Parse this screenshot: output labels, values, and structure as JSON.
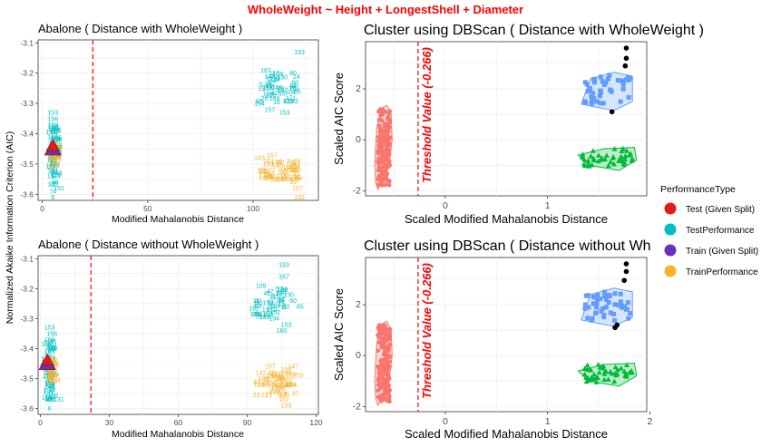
{
  "title": "WholeWeight ~ Height + LongestShell + Diameter",
  "colors": {
    "test_split": "#e41a1c",
    "test_performance": "#00bfc4",
    "train_split": "#6a2fbf",
    "train_performance": "#f8b32d",
    "cluster_red": "#f8766d",
    "cluster_green": "#00ba38",
    "cluster_blue": "#619cff",
    "noise": "#000000",
    "threshold": "#ff0000"
  },
  "legend": {
    "title": "PerformanceType",
    "items": [
      "Test (Given Split)",
      "TestPerformance",
      "Train (Given Split)",
      "TrainPerformance"
    ]
  },
  "chart_data": [
    {
      "type": "scatter",
      "title": "Abalone ( Distance with WholeWeight )",
      "xlabel": "Modified Mahalanobis Distance",
      "ylabel": "Normalized Akaike Information Criterion (AIC)",
      "xlim": [
        -2,
        131
      ],
      "ylim": [
        -3.62,
        -3.09
      ],
      "xticks": [
        0,
        50,
        100
      ],
      "yticks": [
        -3.1,
        -3.2,
        -3.3,
        -3.4,
        -3.5,
        -3.6
      ],
      "threshold_x": 24,
      "series": [
        {
          "name": "TestPerformance",
          "points": [
            [
              110,
              -3.2,
              "117"
            ],
            [
              106,
              -3.19,
              "167"
            ],
            [
              104,
              -3.25,
              "19"
            ],
            [
              103,
              -3.3,
              "164"
            ],
            [
              109,
              -3.22,
              "113"
            ],
            [
              116,
              -3.29,
              "42"
            ],
            [
              113,
              -3.25,
              "28"
            ],
            [
              119,
              -3.2,
              "80"
            ],
            [
              120,
              -3.23,
              "80"
            ],
            [
              121,
              -3.26,
              "85"
            ],
            [
              108,
              -3.32,
              "157"
            ],
            [
              115,
              -3.33,
              "153"
            ],
            [
              122,
              -3.13,
              "193"
            ],
            [
              5,
              -3.33,
              "153"
            ],
            [
              5,
              -3.35,
              "156"
            ],
            [
              5,
              -3.37,
              "169"
            ],
            [
              6,
              -3.39,
              "161"
            ],
            [
              5,
              -3.41,
              "166"
            ],
            [
              7,
              -3.42,
              "68"
            ],
            [
              5,
              -3.44,
              "58"
            ],
            [
              6,
              -3.47,
              "126"
            ],
            [
              5,
              -3.49,
              "89"
            ],
            [
              6,
              -3.52,
              "41"
            ],
            [
              5,
              -3.54,
              "6"
            ],
            [
              6,
              -3.56,
              "48"
            ],
            [
              5,
              -3.59,
              "74"
            ],
            [
              8,
              -3.58,
              "131"
            ],
            [
              5,
              -3.61,
              "6"
            ]
          ]
        },
        {
          "name": "TrainPerformance",
          "points": [
            [
              103,
              -3.48,
              "142"
            ],
            [
              107,
              -3.5,
              "180"
            ],
            [
              109,
              -3.47,
              "157"
            ],
            [
              104,
              -3.52,
              "28"
            ],
            [
              110,
              -3.54,
              "113"
            ],
            [
              115,
              -3.52,
              "147"
            ],
            [
              113,
              -3.55,
              "153"
            ],
            [
              118,
              -3.5,
              "170"
            ],
            [
              121,
              -3.49,
              "84"
            ],
            [
              120,
              -3.52,
              "10"
            ],
            [
              122,
              -3.55,
              "37"
            ],
            [
              121,
              -3.58,
              "157"
            ],
            [
              122,
              -3.61,
              "193"
            ],
            [
              7,
              -3.45,
              "12"
            ],
            [
              7,
              -3.48,
              "95"
            ]
          ]
        },
        {
          "name": "Test (Given Split)",
          "points": [
            [
              5,
              -3.44
            ]
          ]
        },
        {
          "name": "Train (Given Split)",
          "points": [
            [
              5,
              -3.45
            ]
          ]
        }
      ]
    },
    {
      "type": "scatter",
      "title": "Cluster using DBScan ( Distance with WholeWeight )",
      "xlabel": "Scaled Modified Mahalanobis Distance",
      "ylabel": "Scaled AIC Score",
      "xlim": [
        -0.78,
        1.97
      ],
      "ylim": [
        -2.2,
        3.85
      ],
      "xticks": [
        0,
        1
      ],
      "yticks": [
        2,
        0,
        -2
      ],
      "threshold_x": -0.266,
      "threshold_label": "Threshold Value (-0.266)"
    },
    {
      "type": "scatter",
      "title": "Abalone ( Distance without WholeWeight )",
      "xlabel": "Modified Mahalanobis Distance",
      "ylabel": "Normalized Akaike Information Criterion (AIC)",
      "xlim": [
        -1,
        121
      ],
      "ylim": [
        -3.62,
        -3.09
      ],
      "xticks": [
        0,
        30,
        60,
        90,
        120
      ],
      "yticks": [
        -3.1,
        -3.2,
        -3.3,
        -3.4,
        -3.5,
        -3.6
      ],
      "threshold_x": 22,
      "series": [
        {
          "name": "TestPerformance",
          "points": [
            [
              106,
              -3.12,
              "193"
            ],
            [
              106,
              -3.16,
              "167"
            ],
            [
              96,
              -3.19,
              "109"
            ],
            [
              100,
              -3.21,
              "47"
            ],
            [
              94,
              -3.24,
              "11"
            ],
            [
              98,
              -3.27,
              "19"
            ],
            [
              96,
              -3.29,
              "164"
            ],
            [
              104,
              -3.24,
              "28"
            ],
            [
              108,
              -3.22,
              "130"
            ],
            [
              110,
              -3.24,
              "60"
            ],
            [
              113,
              -3.26,
              "85"
            ],
            [
              107,
              -3.32,
              "153"
            ],
            [
              105,
              -3.34,
              "160"
            ],
            [
              4,
              -3.33,
              "153"
            ],
            [
              5,
              -3.35,
              "156"
            ],
            [
              4,
              -3.37,
              "169"
            ],
            [
              5,
              -3.39,
              "161"
            ],
            [
              4,
              -3.41,
              "166"
            ],
            [
              5,
              -3.43,
              "68"
            ],
            [
              4,
              -3.46,
              "126"
            ],
            [
              5,
              -3.48,
              "89"
            ],
            [
              4,
              -3.51,
              "41"
            ],
            [
              5,
              -3.54,
              "6"
            ],
            [
              4,
              -3.57,
              "48"
            ],
            [
              8,
              -3.57,
              "131"
            ],
            [
              4,
              -3.6,
              "6"
            ]
          ]
        },
        {
          "name": "TrainPerformance",
          "points": [
            [
              96,
              -3.48,
              "142"
            ],
            [
              100,
              -3.46,
              "157"
            ],
            [
              97,
              -3.5,
              "180"
            ],
            [
              95,
              -3.52,
              "113"
            ],
            [
              104,
              -3.5,
              "28"
            ],
            [
              107,
              -3.47,
              "150"
            ],
            [
              110,
              -3.46,
              "147"
            ],
            [
              112,
              -3.49,
              "170"
            ],
            [
              108,
              -3.52,
              "10"
            ],
            [
              111,
              -3.55,
              "37"
            ],
            [
              106,
              -3.57,
              "157"
            ],
            [
              107,
              -3.59,
              "133"
            ],
            [
              6,
              -3.45,
              "12"
            ],
            [
              6,
              -3.47,
              "95"
            ]
          ]
        },
        {
          "name": "Test (Given Split)",
          "points": [
            [
              3,
              -3.44
            ]
          ]
        },
        {
          "name": "Train (Given Split)",
          "points": [
            [
              3,
              -3.45
            ]
          ]
        }
      ]
    },
    {
      "type": "scatter",
      "title": "Cluster using DBScan ( Distance without WholeWeight )",
      "xlabel": "Scaled Modified Mahalanobis Distance",
      "ylabel": "Scaled AIC Score",
      "xlim": [
        -0.78,
        1.97
      ],
      "ylim": [
        -2.2,
        3.85
      ],
      "xticks": [
        0,
        1,
        2
      ],
      "yticks": [
        2,
        0,
        -2
      ],
      "threshold_x": -0.266,
      "threshold_label": "Threshold Value (-0.266)"
    }
  ]
}
